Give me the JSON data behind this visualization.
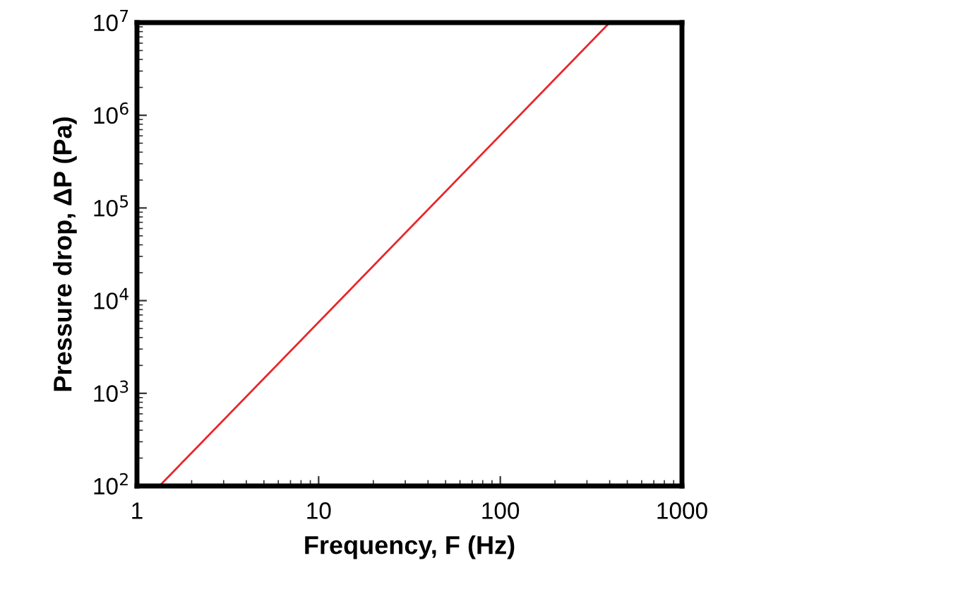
{
  "chart_data": {
    "type": "line",
    "xlabel": "Frequency, F (Hz)",
    "ylabel": "Pressure drop, ΔP (Pa)",
    "x": [
      1.33,
      400
    ],
    "series": [
      {
        "color": "#e8262a",
        "values": [
          100,
          10000000
        ]
      }
    ],
    "log": "xy",
    "xlim": [
      1,
      1000
    ],
    "ylim": [
      100,
      10000000
    ],
    "xticks": [
      1,
      10,
      100,
      1000
    ],
    "yticks": [
      {
        "value": 100,
        "label": "10$^{2}$"
      },
      {
        "value": 1000,
        "label": "10$^{3}$"
      },
      {
        "value": 10000,
        "label": "10$^{4}$"
      },
      {
        "value": 100000,
        "label": "10$^{5}$"
      },
      {
        "value": 1000000,
        "label": "10$^{6}$"
      },
      {
        "value": 10000000,
        "label": "10$^{7}$"
      }
    ],
    "grid": false,
    "marker": "none",
    "line_style": "solid"
  }
}
